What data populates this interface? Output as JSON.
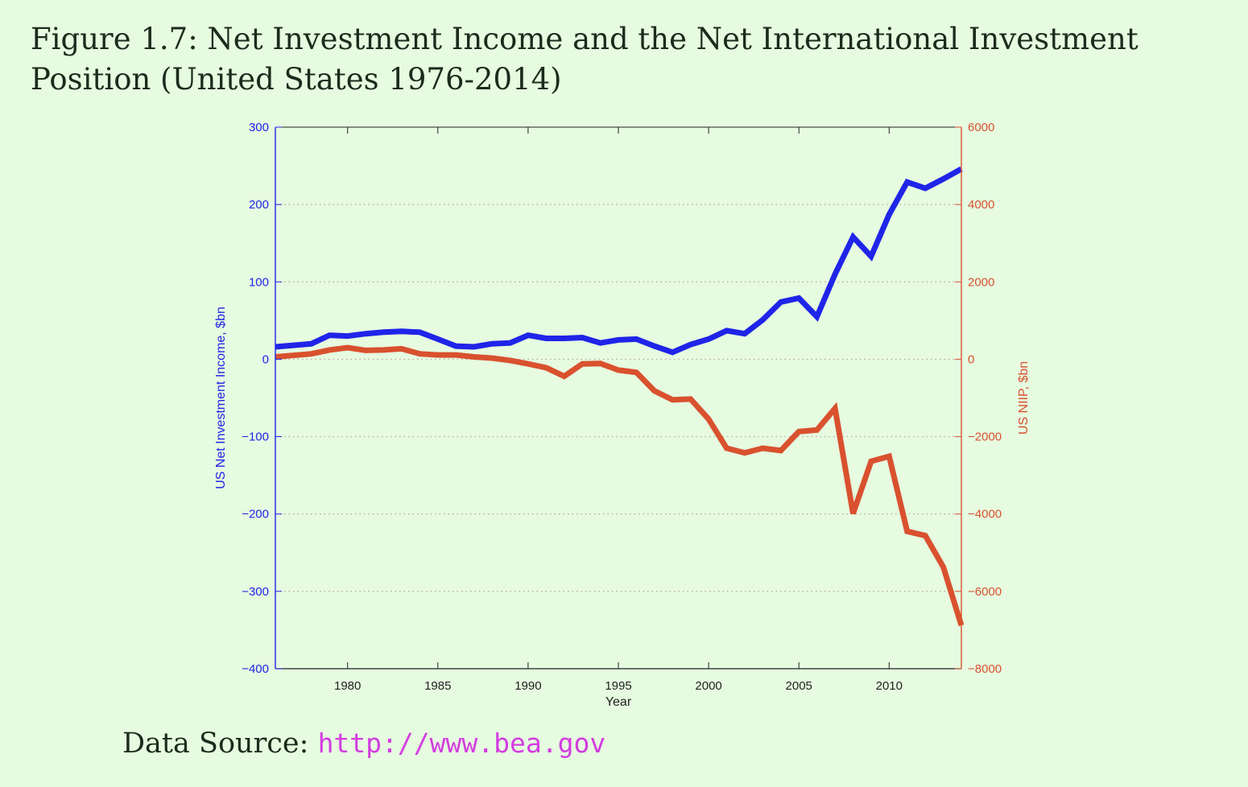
{
  "figure": {
    "title": "Figure 1.7: Net Investment Income and the Net International Investment Position (United States 1976-2014)"
  },
  "source": {
    "label": "Data Source:",
    "link": "http://www.bea.gov"
  },
  "colors": {
    "background": "#e6fbe0",
    "left_axis": "#1f24e8",
    "right_axis": "#d9512e",
    "grid": "#b9a0a0"
  },
  "chart_data": {
    "type": "line",
    "title": "",
    "xlabel": "Year",
    "ylabel_left": "US Net Investment Income, $bn",
    "ylabel_right": "US NIIP, $bn",
    "xlim": [
      1976,
      2014
    ],
    "ylim_left": [
      -400,
      300
    ],
    "ylim_right": [
      -8000,
      6000
    ],
    "x_ticks": [
      1980,
      1985,
      1990,
      1995,
      2000,
      2005,
      2010
    ],
    "y_ticks_left": [
      300,
      200,
      100,
      0,
      -100,
      -200,
      -300,
      -400
    ],
    "y_ticks_left_labels": [
      "300",
      "200",
      "100",
      "0",
      "−100",
      "−200",
      "−300",
      "−400"
    ],
    "y_ticks_right": [
      6000,
      4000,
      2000,
      0,
      -2000,
      -4000,
      -6000,
      -8000
    ],
    "y_ticks_right_labels": [
      "6000",
      "4000",
      "2000",
      "0",
      "−2000",
      "−4000",
      "−6000",
      "−8000"
    ],
    "grid": "horizontal dotted",
    "x": [
      1976,
      1977,
      1978,
      1979,
      1980,
      1981,
      1982,
      1983,
      1984,
      1985,
      1986,
      1987,
      1988,
      1989,
      1990,
      1991,
      1992,
      1993,
      1994,
      1995,
      1996,
      1997,
      1998,
      1999,
      2000,
      2001,
      2002,
      2003,
      2004,
      2005,
      2006,
      2007,
      2008,
      2009,
      2010,
      2011,
      2012,
      2013,
      2014
    ],
    "series": [
      {
        "axis": "left",
        "color": "#1f24e8",
        "values": [
          16,
          18,
          20,
          31,
          30,
          33,
          35,
          36,
          35,
          26,
          17,
          16,
          20,
          21,
          31,
          27,
          27,
          28,
          21,
          25,
          26,
          17,
          9,
          19,
          26,
          37,
          33,
          51,
          74,
          79,
          55,
          110,
          158,
          133,
          187,
          229,
          221,
          233,
          246
        ]
      },
      {
        "axis": "right",
        "color": "#d9512e",
        "values": [
          60,
          100,
          140,
          240,
          300,
          230,
          240,
          270,
          140,
          110,
          110,
          60,
          30,
          -30,
          -120,
          -220,
          -440,
          -120,
          -110,
          -280,
          -340,
          -820,
          -1050,
          -1030,
          -1550,
          -2300,
          -2420,
          -2300,
          -2360,
          -1870,
          -1830,
          -1270,
          -3990,
          -2640,
          -2510,
          -4450,
          -4560,
          -5370,
          -6880
        ]
      }
    ]
  }
}
